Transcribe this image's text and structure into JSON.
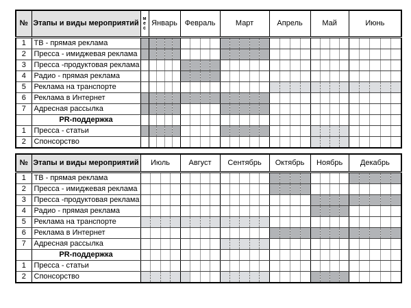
{
  "colors": {
    "shade_dark": "#b2b4b7",
    "shade_light": "#dcdee1",
    "header_fill": "#e2e2e2",
    "grid_line": "#3f3f3f",
    "week_separator": "#9a9a9a"
  },
  "column_headers": {
    "number": "№",
    "stages": "Этапы и виды мероприятий",
    "month_subcolumn": "мес"
  },
  "shading_legend": {
    "0": "empty",
    "1": "dark-gray active period",
    "2": "light-gray active period"
  },
  "tables": [
    {
      "name": "first-half-year",
      "mes_column": true,
      "months": [
        {
          "label": "Январь",
          "weeks": 4
        },
        {
          "label": "Февраль",
          "weeks": 4
        },
        {
          "label": "Март",
          "weeks": 5
        },
        {
          "label": "Апрель",
          "weeks": 4
        },
        {
          "label": "Май",
          "weeks": 4
        },
        {
          "label": "Июнь",
          "weeks": 5
        }
      ],
      "rows": [
        {
          "num": "1",
          "label": "ТВ - прямая реклама",
          "section": false,
          "mes": "1",
          "weeks": "11110000111110000000000000"
        },
        {
          "num": "2",
          "label": "Пресса - имиджевая реклама",
          "section": false,
          "mes": "1",
          "weeks": "11110000111110000000000000"
        },
        {
          "num": "3",
          "label": "Пресса -продуктовая реклама",
          "section": false,
          "mes": "0",
          "weeks": "00001111000000000000000000"
        },
        {
          "num": "4",
          "label": "Радио - прямая реклама",
          "section": false,
          "mes": "0",
          "weeks": "00001111000000000000000000"
        },
        {
          "num": "5",
          "label": "Реклама на транспорте",
          "section": false,
          "mes": "0",
          "weeks": "00000000000002222222222222"
        },
        {
          "num": "6",
          "label": "Реклама в Интернет",
          "section": false,
          "mes": "1",
          "weeks": "11111111111110000000000000"
        },
        {
          "num": "7",
          "label": "Адресная рассылка",
          "section": false,
          "mes": "1",
          "weeks": "11110000111110000000000000"
        },
        {
          "num": "",
          "label": "PR-поддержка",
          "section": true,
          "mes": "0",
          "weeks": "00000000000000000000000000"
        },
        {
          "num": "1",
          "label": "Пресса - статьи",
          "section": false,
          "mes": "1",
          "weeks": "11110000111110000222200000"
        },
        {
          "num": "2",
          "label": "Спонсорство",
          "section": false,
          "mes": "0",
          "weeks": "00000000000000000222200000"
        }
      ]
    },
    {
      "name": "second-half-year",
      "mes_column": false,
      "months": [
        {
          "label": "Июль",
          "weeks": 4
        },
        {
          "label": "Август",
          "weeks": 4
        },
        {
          "label": "Сентябрь",
          "weeks": 5
        },
        {
          "label": "Октябрь",
          "weeks": 4
        },
        {
          "label": "Ноябрь",
          "weeks": 4
        },
        {
          "label": "Декабрь",
          "weeks": 5
        }
      ],
      "rows": [
        {
          "num": "1",
          "label": "ТВ - прямая реклама",
          "section": false,
          "mes": "0",
          "weeks": "00000000000001111000011111"
        },
        {
          "num": "2",
          "label": "Пресса - имиджевая реклама",
          "section": false,
          "mes": "0",
          "weeks": "00000000000001111000000000"
        },
        {
          "num": "3",
          "label": "Пресса -продуктовая реклама",
          "section": false,
          "mes": "0",
          "weeks": "00000000000000000111111111"
        },
        {
          "num": "4",
          "label": "Радио - прямая реклама",
          "section": false,
          "mes": "0",
          "weeks": "00000000000000000111100000"
        },
        {
          "num": "5",
          "label": "Реклама на транспорте",
          "section": false,
          "mes": "0",
          "weeks": "22222222222220000000000000"
        },
        {
          "num": "6",
          "label": "Реклама в Интернет",
          "section": false,
          "mes": "0",
          "weeks": "00000000000001111111111111"
        },
        {
          "num": "7",
          "label": "Адресная рассылка",
          "section": false,
          "mes": "0",
          "weeks": "00000000222220000000000000"
        },
        {
          "num": "",
          "label": "PR-поддержка",
          "section": true,
          "mes": "0",
          "weeks": "00000000000000000000000000"
        },
        {
          "num": "1",
          "label": "Пресса - статьи",
          "section": false,
          "mes": "0",
          "weeks": "00000000000000000000000000"
        },
        {
          "num": "2",
          "label": "Спонсорство",
          "section": false,
          "mes": "0",
          "weeks": "22222000222220000111100000"
        }
      ]
    }
  ]
}
